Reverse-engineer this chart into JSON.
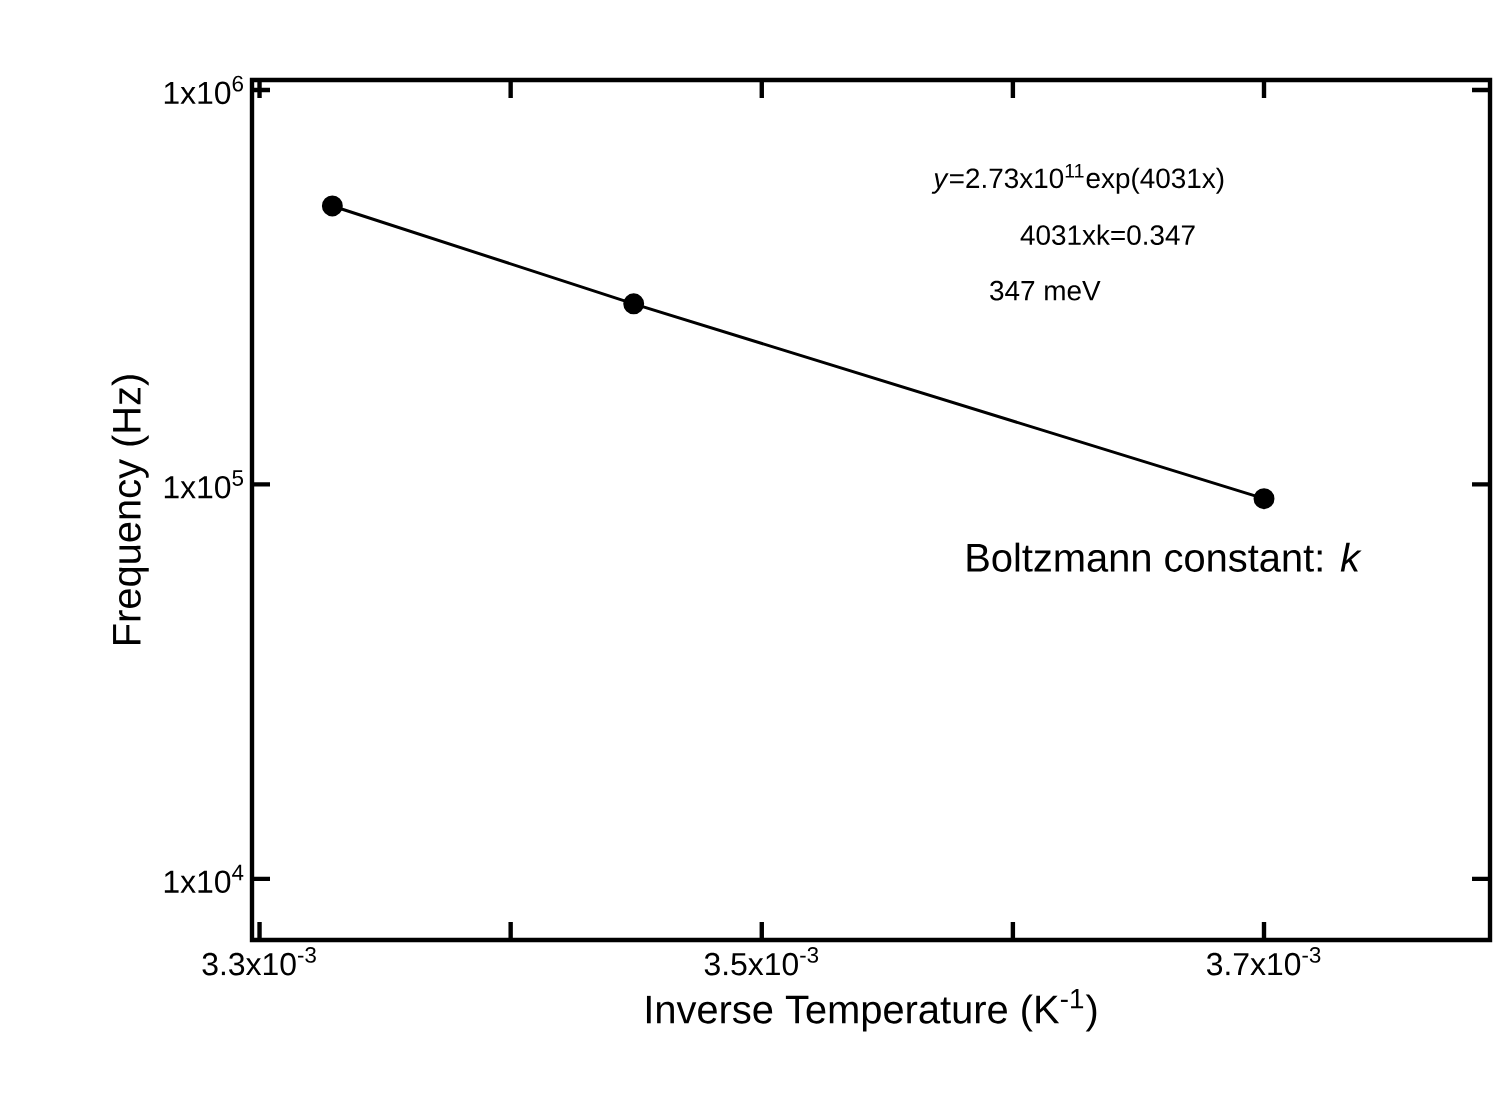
{
  "chart_data": {
    "type": "line",
    "xlabel": "Inverse Temperature (K$^{-1}$)",
    "ylabel": "Frequency (Hz)",
    "x": [
      0.003329,
      0.003449,
      0.0037
    ],
    "series": [
      {
        "color": "#000000",
        "values": [
          508000,
          287000,
          92000
        ]
      }
    ],
    "xlim": [
      0.003297,
      0.00379
    ],
    "ylim": [
      7000,
      1060000
    ],
    "xticks": [
      {
        "value": 0.0033,
        "label": "3.3x10$^{-3}$"
      },
      {
        "value": 0.0034,
        "label": null
      },
      {
        "value": 0.0035,
        "label": "3.5x10$^{-3}$"
      },
      {
        "value": 0.0036,
        "label": null
      },
      {
        "value": 0.0037,
        "label": "3.7x10$^{-3}$"
      }
    ],
    "yticks": [
      {
        "value": 10000,
        "label": "1x10$^{4}$"
      },
      {
        "value": 100000,
        "label": "1x10$^{5}$"
      },
      {
        "value": 1000000,
        "label": "1x10$^{6}$"
      }
    ],
    "log": "y",
    "grid": false,
    "marker": "circle",
    "line_style": "solid",
    "annotations": [
      "*y*=2.73x10$^{11}$exp(4031x)",
      "4031xk=0.347",
      "347 meV",
      "Boltzmann constant: *k*"
    ]
  }
}
